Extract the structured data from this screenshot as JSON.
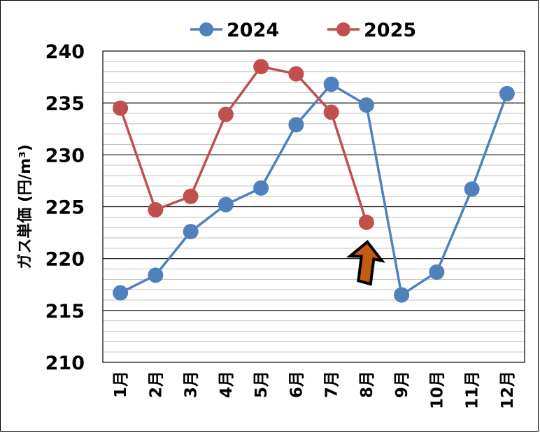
{
  "chart_data": {
    "type": "line",
    "categories": [
      "1月",
      "2月",
      "3月",
      "4月",
      "5月",
      "6月",
      "7月",
      "8月",
      "9月",
      "10月",
      "11月",
      "12月"
    ],
    "series": [
      {
        "name": "2024",
        "color": "#4F81BD",
        "values": [
          216.7,
          218.4,
          222.6,
          225.2,
          226.8,
          232.9,
          236.8,
          234.8,
          216.5,
          218.7,
          226.7,
          235.9
        ]
      },
      {
        "name": "2025",
        "color": "#C0504D",
        "values": [
          234.5,
          224.7,
          226.0,
          233.9,
          238.5,
          237.8,
          234.1,
          223.5,
          null,
          null,
          null,
          null
        ]
      }
    ],
    "ylabel": "ガス単価 (円/m³)",
    "ylim": [
      210,
      240
    ],
    "yticks": [
      210,
      215,
      220,
      225,
      230,
      235,
      240
    ],
    "grid": {
      "major_step": 5,
      "minor_step": 1
    },
    "legend_position": "top",
    "annotation": {
      "type": "arrow",
      "direction": "up",
      "target_category": "8月",
      "color": "#C55A11"
    }
  }
}
